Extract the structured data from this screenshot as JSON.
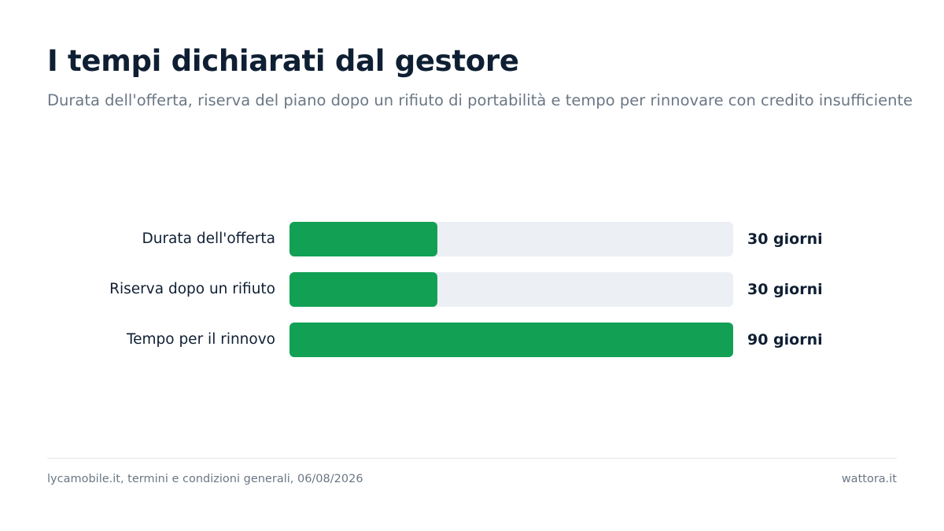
{
  "header": {
    "title": "I tempi dichiarati dal gestore",
    "subtitle": "Durata dell'offerta, riserva del piano dopo un rifiuto di portabilità e tempo per rinnovare con credito insufficiente"
  },
  "chart_data": {
    "type": "bar",
    "orientation": "horizontal",
    "categories": [
      "Durata dell'offerta",
      "Riserva dopo un rifiuto",
      "Tempo per il rinnovo"
    ],
    "values": [
      30,
      30,
      90
    ],
    "value_labels": [
      "30 giorni",
      "30 giorni",
      "90 giorni"
    ],
    "unit": "giorni",
    "xlim": [
      0,
      90
    ],
    "grid": false,
    "bar_color": "#12a055",
    "track_color": "#eceff4"
  },
  "footer": {
    "source": "lycamobile.it, termini e condizioni generali, 06/08/2026",
    "brand": "wattora.it"
  }
}
